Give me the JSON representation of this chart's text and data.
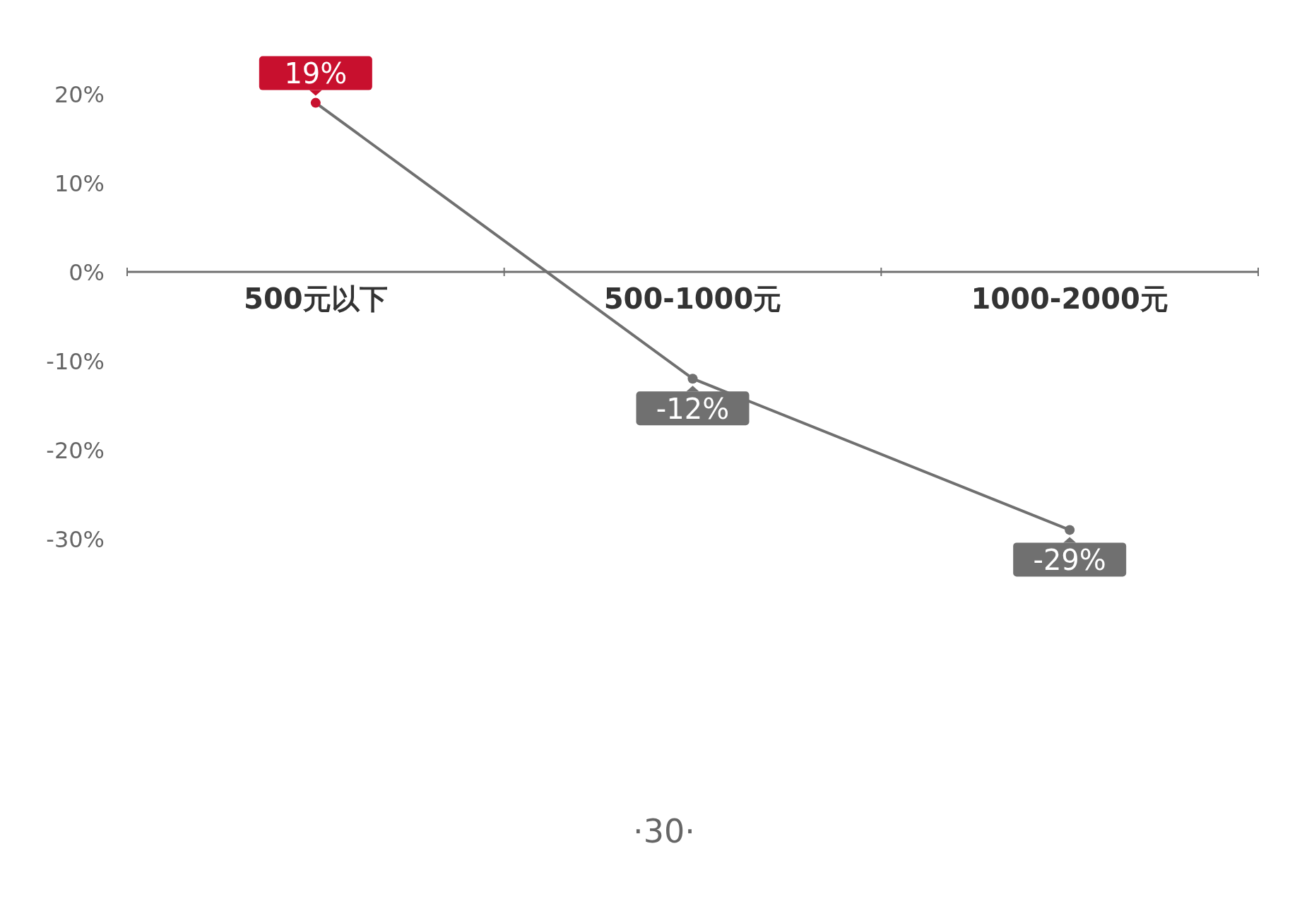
{
  "chart_data": {
    "type": "line",
    "categories": [
      "500元以下",
      "500-1000元",
      "1000-2000元"
    ],
    "series": [
      {
        "color": "#707070",
        "colors": [
          "#c8102e",
          "#707070",
          "#707070"
        ],
        "values": [
          19,
          -12,
          -29
        ],
        "value_labels": [
          "19%",
          "-12%",
          "-29%"
        ]
      }
    ],
    "ylim": [
      -30,
      20
    ],
    "yticks": [
      {
        "value": 20,
        "label": "20%"
      },
      {
        "value": 10,
        "label": "10%"
      },
      {
        "value": 0,
        "label": "0%"
      },
      {
        "value": -10,
        "label": "-10%"
      },
      {
        "value": -20,
        "label": "-20%"
      },
      {
        "value": -30,
        "label": "-30%"
      }
    ],
    "marker": "circle",
    "line_style": "solid",
    "grid": false,
    "annotations": [
      "·30·"
    ]
  }
}
